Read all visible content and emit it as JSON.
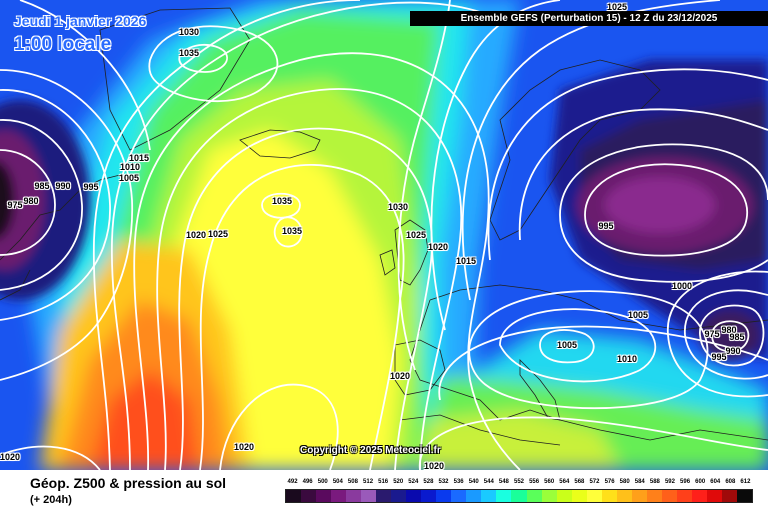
{
  "header": {
    "date_title": "Jeudi 1 janvier 2026",
    "local_time": "1:00 locale",
    "run_banner": "Ensemble GEFS  (Perturbation 15)  -  12 Z du 23/12/2025",
    "copyright": "Copyright © 2025 Meteociel.fr"
  },
  "footer": {
    "product_title": "Géop. Z500 & pression au sol",
    "lead_time": "(+ 204h)"
  },
  "color_scale": {
    "labels": [
      "492",
      "496",
      "500",
      "504",
      "508",
      "512",
      "516",
      "520",
      "524",
      "528",
      "532",
      "536",
      "540",
      "544",
      "548",
      "552",
      "556",
      "560",
      "564",
      "568",
      "572",
      "576",
      "580",
      "584",
      "588",
      "592",
      "596",
      "600",
      "604",
      "608",
      "612"
    ],
    "colors": [
      "#1a0a1e",
      "#3a0a3e",
      "#5a0a5e",
      "#7a1a7e",
      "#8a3a9e",
      "#9a5aba",
      "#2a1a6e",
      "#1a1a8e",
      "#0a0aae",
      "#0a1ace",
      "#0a3aee",
      "#1a6aff",
      "#1a9aff",
      "#1acaff",
      "#1affe0",
      "#1aff9a",
      "#5aff5a",
      "#9aff3a",
      "#caff1a",
      "#eaff1a",
      "#ffff3a",
      "#ffe01a",
      "#ffc01a",
      "#ffa01a",
      "#ff801a",
      "#ff601a",
      "#ff401a",
      "#ff201a",
      "#e00a0a",
      "#a00a0a",
      "#0a0a0a"
    ]
  },
  "pressure_labels": [
    {
      "text": "1030",
      "kind": "high"
    },
    {
      "text": "1035",
      "kind": "high"
    },
    {
      "text": "1015",
      "kind": "low"
    },
    {
      "text": "1010",
      "kind": "low"
    },
    {
      "text": "1005",
      "kind": "low"
    },
    {
      "text": "995",
      "kind": "low"
    },
    {
      "text": "985",
      "kind": "low"
    },
    {
      "text": "990",
      "kind": "low"
    },
    {
      "text": "980",
      "kind": "low"
    },
    {
      "text": "975",
      "kind": "low"
    },
    {
      "text": "1020",
      "kind": "high"
    },
    {
      "text": "1025",
      "kind": "high"
    },
    {
      "text": "1035",
      "kind": "high"
    },
    {
      "text": "1035",
      "kind": "high"
    },
    {
      "text": "1030",
      "kind": "high"
    },
    {
      "text": "1025",
      "kind": "high"
    },
    {
      "text": "1020",
      "kind": "high"
    },
    {
      "text": "1015",
      "kind": "low"
    },
    {
      "text": "995",
      "kind": "low"
    },
    {
      "text": "1000",
      "kind": "low"
    },
    {
      "text": "1005",
      "kind": "low"
    },
    {
      "text": "1005",
      "kind": "low"
    },
    {
      "text": "1010",
      "kind": "low"
    },
    {
      "text": "980",
      "kind": "low"
    },
    {
      "text": "975",
      "kind": "low"
    },
    {
      "text": "985",
      "kind": "low"
    },
    {
      "text": "990",
      "kind": "low"
    },
    {
      "text": "995",
      "kind": "low"
    },
    {
      "text": "1020",
      "kind": "high"
    },
    {
      "text": "1020",
      "kind": "high"
    },
    {
      "text": "1020",
      "kind": "high"
    },
    {
      "text": "1020",
      "kind": "high"
    },
    {
      "text": "1025",
      "kind": "high"
    }
  ]
}
